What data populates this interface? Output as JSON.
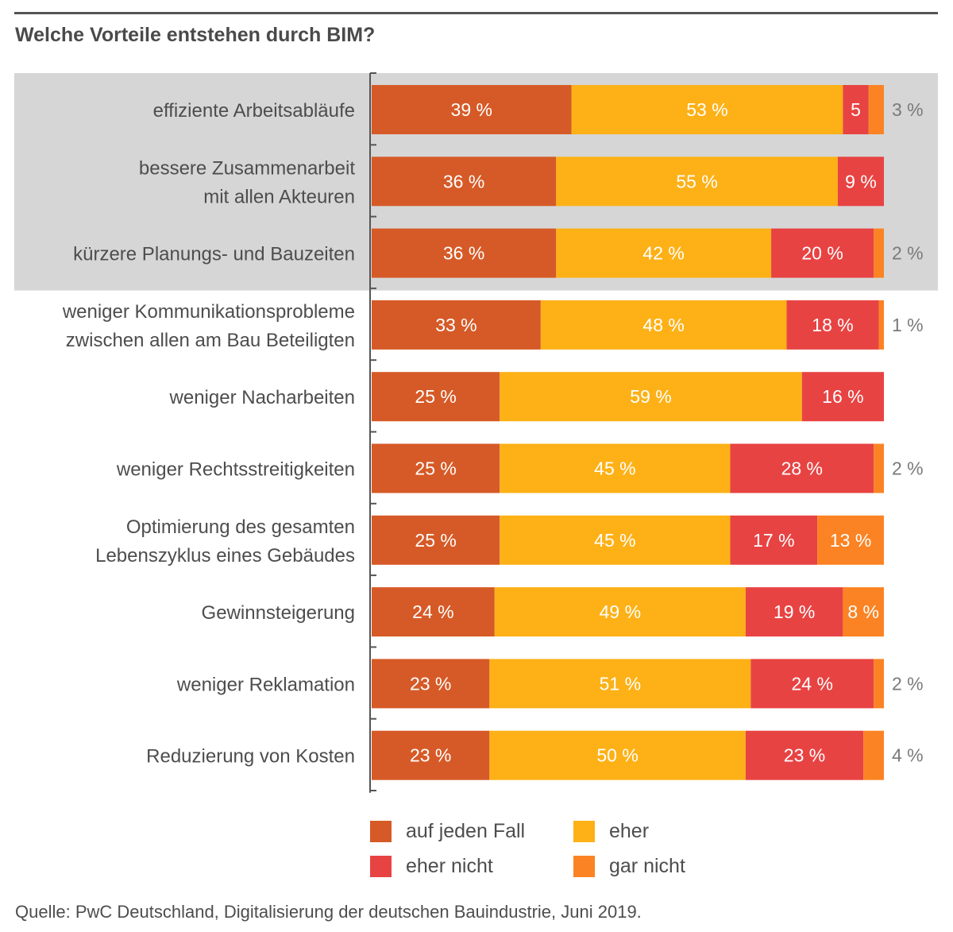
{
  "title": "Welche Vorteile entstehen durch BIM?",
  "source": "Quelle: PwC Deutschland, Digitalisierung der deutschen Bauindustrie, Juni 2019.",
  "colors": {
    "highlight_band": "#d6d6d6",
    "axis": "#555555"
  },
  "chart_data": {
    "type": "bar",
    "orientation": "horizontal",
    "stacked": true,
    "title": "Welche Vorteile entstehen durch BIM?",
    "xlabel": "",
    "ylabel": "",
    "xlim": [
      0,
      100
    ],
    "unit": "%",
    "grid": false,
    "legend_position": "bottom",
    "highlighted_categories": [
      0,
      1,
      2
    ],
    "categories": [
      [
        "effiziente Arbeitsabläufe"
      ],
      [
        "bessere Zusammenarbeit",
        "mit allen Akteuren"
      ],
      [
        "kürzere Planungs- und Bauzeiten"
      ],
      [
        "weniger Kommunikationsprobleme",
        "zwischen allen am Bau Beteiligten"
      ],
      [
        "weniger Nacharbeiten"
      ],
      [
        "weniger Rechtsstreitigkeiten"
      ],
      [
        "Optimierung des gesamten",
        "Lebenszyklus eines Gebäudes"
      ],
      [
        "Gewinnsteigerung"
      ],
      [
        "weniger Reklamation"
      ],
      [
        "Reduzierung von Kosten"
      ]
    ],
    "series": [
      {
        "name": "auf jeden Fall",
        "color": "#d65a27",
        "values": [
          39,
          36,
          36,
          33,
          25,
          25,
          25,
          24,
          23,
          23
        ],
        "labels": [
          "39 %",
          "36 %",
          "36 %",
          "33 %",
          "25 %",
          "25 %",
          "25 %",
          "24 %",
          "23 %",
          "23 %"
        ]
      },
      {
        "name": "eher",
        "color": "#fdb117",
        "values": [
          53,
          55,
          42,
          48,
          59,
          45,
          45,
          49,
          51,
          50
        ],
        "labels": [
          "53 %",
          "55 %",
          "42 %",
          "48 %",
          "59 %",
          "45 %",
          "45 %",
          "49 %",
          "51 %",
          "50 %"
        ]
      },
      {
        "name": "eher nicht",
        "color": "#e84343",
        "values": [
          5,
          9,
          20,
          18,
          16,
          28,
          17,
          19,
          24,
          23
        ],
        "labels": [
          "5",
          "9 %",
          "20 %",
          "18 %",
          "16 %",
          "28 %",
          "17 %",
          "19 %",
          "24 %",
          "23 %"
        ]
      },
      {
        "name": "gar nicht",
        "color": "#fb8323",
        "values": [
          3,
          0,
          2,
          1,
          0,
          2,
          13,
          8,
          2,
          4
        ],
        "labels": [
          "3 %",
          "",
          "2 %",
          "1 %",
          "",
          "2 %",
          "13 %",
          "8 %",
          "2 %",
          "4 %"
        ],
        "label_outside": [
          true,
          false,
          true,
          true,
          false,
          true,
          false,
          false,
          true,
          true
        ]
      }
    ]
  },
  "legend": [
    {
      "label": "auf jeden Fall",
      "color": "#d65a27"
    },
    {
      "label": "eher",
      "color": "#fdb117"
    },
    {
      "label": "eher nicht",
      "color": "#e84343"
    },
    {
      "label": "gar nicht",
      "color": "#fb8323"
    }
  ]
}
